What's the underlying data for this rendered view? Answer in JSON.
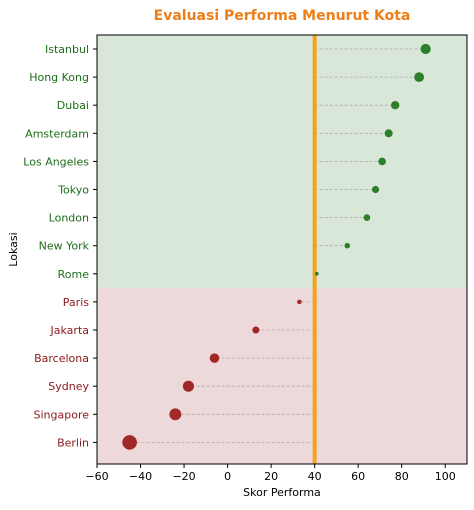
{
  "chart_data": {
    "type": "scatter",
    "title": "Evaluasi Performa Menurut Kota",
    "xlabel": "Skor Performa",
    "ylabel": "Lokasi",
    "xlim": [
      -60,
      110
    ],
    "xticks": [
      -60,
      -40,
      -20,
      0,
      20,
      40,
      60,
      80,
      100
    ],
    "reference_line": 40,
    "grid": false,
    "legend": "none",
    "categories": [
      "Istanbul",
      "Hong Kong",
      "Dubai",
      "Amsterdam",
      "Los Angeles",
      "Tokyo",
      "London",
      "New York",
      "Rome",
      "Paris",
      "Jakarta",
      "Barcelona",
      "Sydney",
      "Singapore",
      "Berlin"
    ],
    "values": [
      91,
      88,
      77,
      74,
      71,
      68,
      64,
      55,
      41,
      33,
      13,
      -6,
      -18,
      -24,
      -45
    ],
    "colors": {
      "title": "#f07e16",
      "reference": "#f5a21a",
      "positive_point": "#237a23",
      "negative_point": "#9c1f1f",
      "positive_label": "#1c6e1c",
      "negative_label": "#8b1a1a",
      "positive_band": "#d9e7d8",
      "negative_band": "#eed9da",
      "stem": "#aaaaaa"
    }
  }
}
